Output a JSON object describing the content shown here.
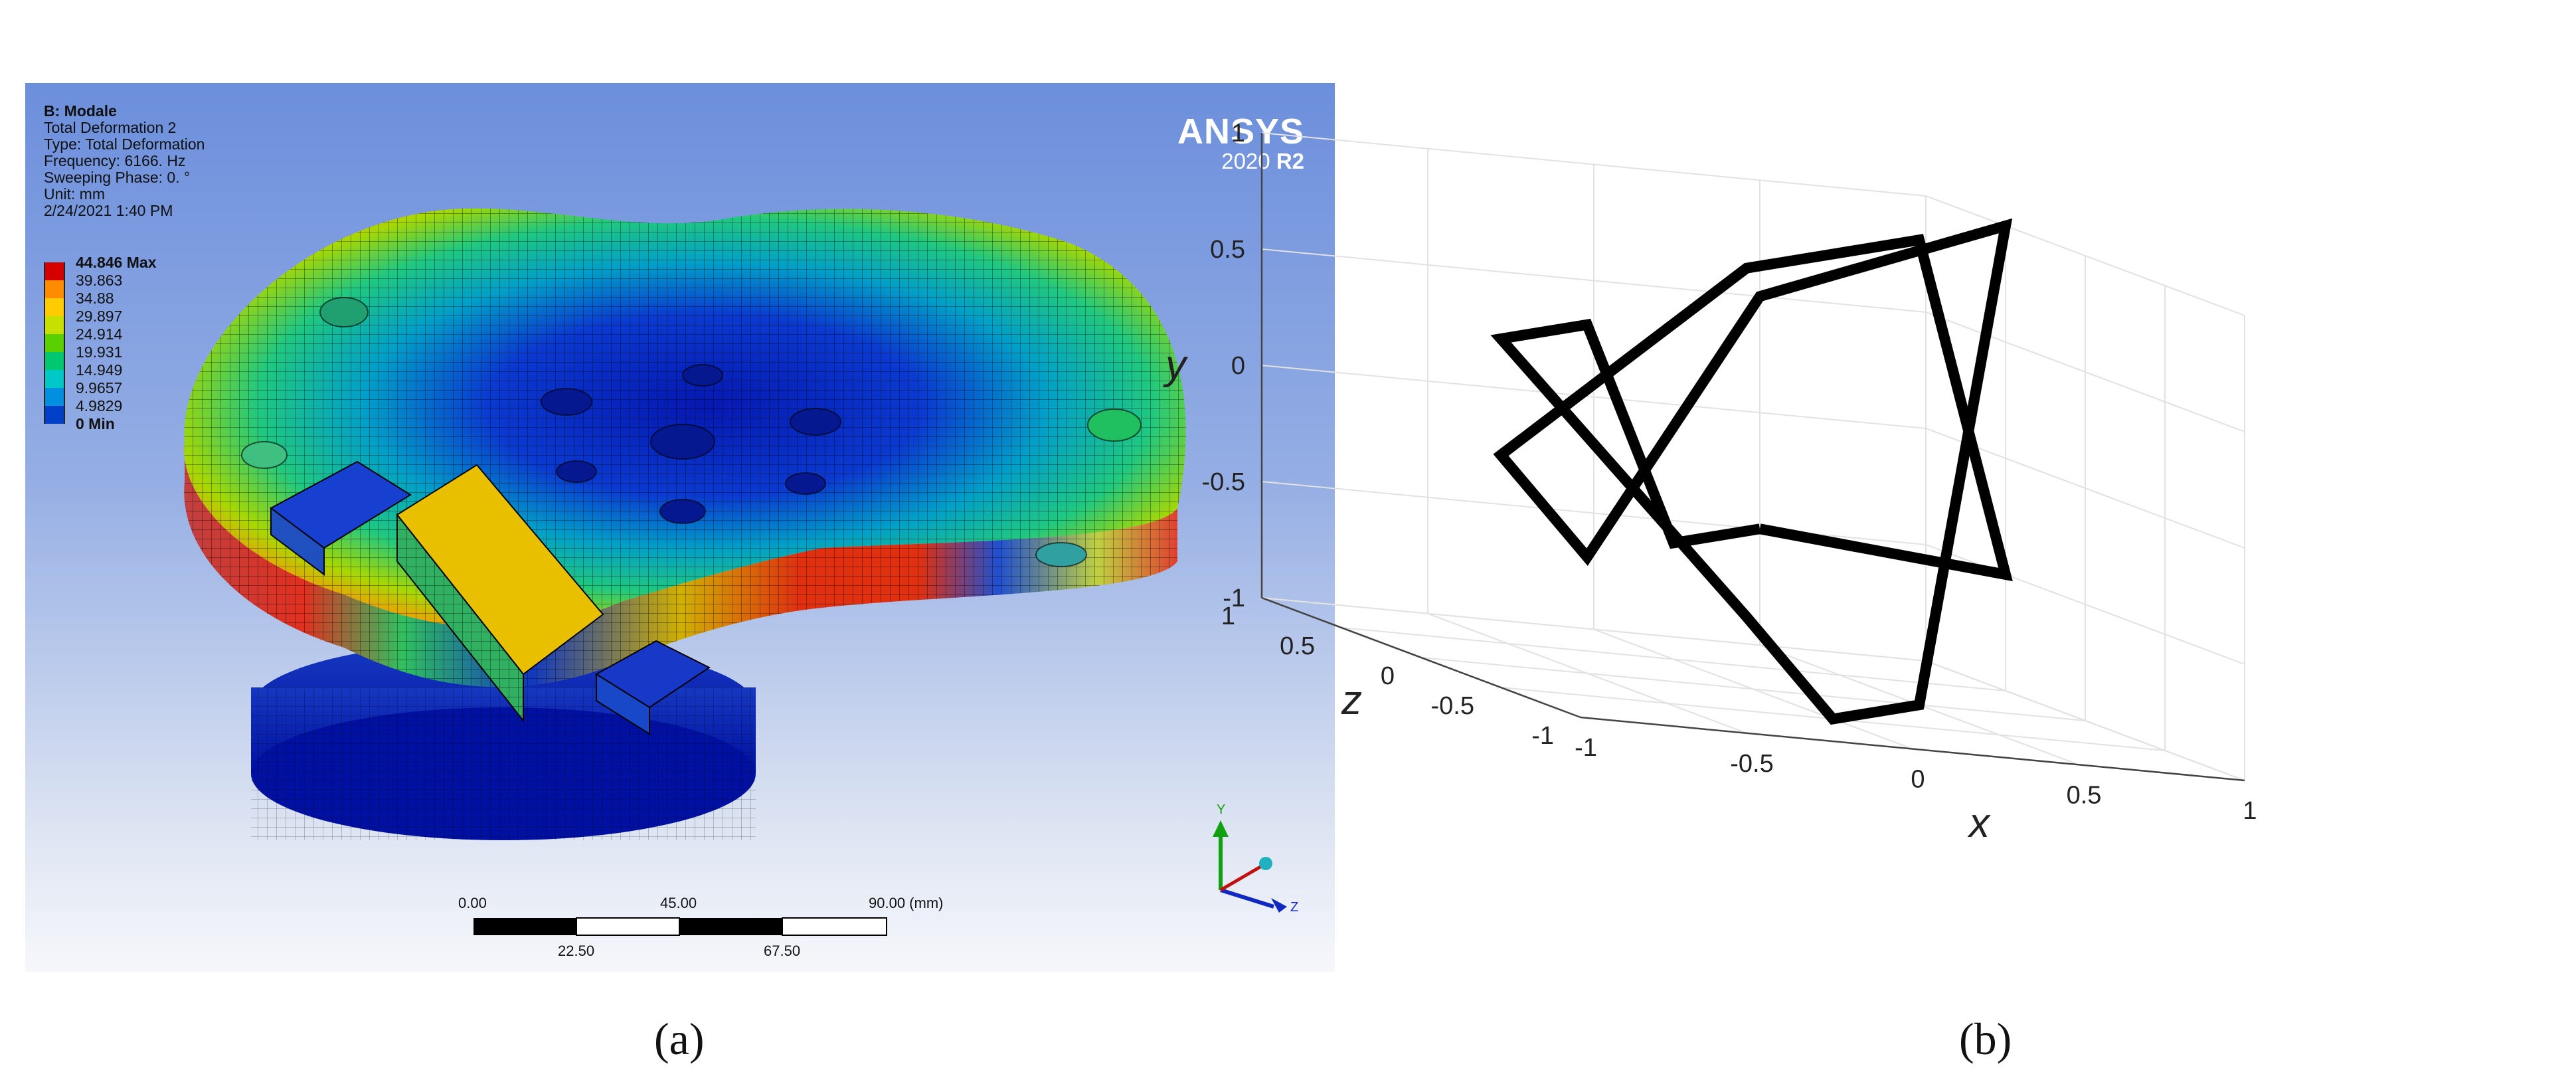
{
  "panel_a": {
    "caption": "(a)",
    "info": {
      "title": "B: Modale",
      "lines": [
        "Total Deformation 2",
        "Type: Total Deformation",
        "Frequency: 6166. Hz",
        "Sweeping Phase: 0. °",
        "Unit: mm",
        "2/24/2021 1:40 PM"
      ]
    },
    "legend": [
      {
        "label": "44.846 Max",
        "color": "#d50000",
        "bold": true
      },
      {
        "label": "39.863",
        "color": "#ff8c00"
      },
      {
        "label": "34.88",
        "color": "#ffcc00"
      },
      {
        "label": "29.897",
        "color": "#c8e000"
      },
      {
        "label": "24.914",
        "color": "#5ad000"
      },
      {
        "label": "19.931",
        "color": "#00c870"
      },
      {
        "label": "14.949",
        "color": "#00c8c8"
      },
      {
        "label": "9.9657",
        "color": "#0090e0"
      },
      {
        "label": "4.9829",
        "color": "#0040c8"
      },
      {
        "label": "0 Min",
        "color": "#0010a0",
        "bold": true
      }
    ],
    "logo": {
      "name": "ANSYS",
      "version_year": "2020",
      "version_release": "R2"
    },
    "scale_bar": {
      "top_labels": [
        "0.00",
        "45.00",
        "90.00 (mm)"
      ],
      "bottom_labels": [
        "22.50",
        "67.50"
      ]
    },
    "triad": {
      "y_label": "Y",
      "z_label": "Z"
    }
  },
  "panel_b": {
    "caption": "(b)",
    "chart_data": {
      "type": "line",
      "projection": "3d",
      "xlabel": "x",
      "ylabel": "y",
      "zlabel": "z",
      "xlim": [
        -1,
        1
      ],
      "ylim": [
        -1,
        1
      ],
      "zlim": [
        -1,
        1
      ],
      "x_ticks": [
        "-1",
        "-0.5",
        "0",
        "0.5",
        "1"
      ],
      "y_ticks": [
        "-1",
        "-0.5",
        "0",
        "0.5",
        "1"
      ],
      "z_ticks": [
        "-1",
        "-0.5",
        "0",
        "0.5",
        "1"
      ],
      "grid": true,
      "line_color": "#000000",
      "series": [
        {
          "x": [
            0.5,
            1,
            0.5,
            0,
            -0.5,
            -1,
            -0.5,
            0,
            0.5,
            1,
            0.5,
            0,
            -0.5,
            -1,
            -0.5,
            0,
            0.5
          ],
          "y": [
            -0.5,
            -0.5,
            1,
            1,
            1,
            0,
            -0.5,
            0,
            0.5,
            1,
            -1,
            -1,
            -0.5,
            0.5,
            0.5,
            -0.5,
            -0.5
          ],
          "z": [
            1,
            0.5,
            0,
            -0.5,
            -1,
            -0.5,
            0,
            0.5,
            1,
            0.5,
            0,
            -0.5,
            -1,
            -0.5,
            0,
            0.5,
            1
          ]
        }
      ]
    }
  }
}
